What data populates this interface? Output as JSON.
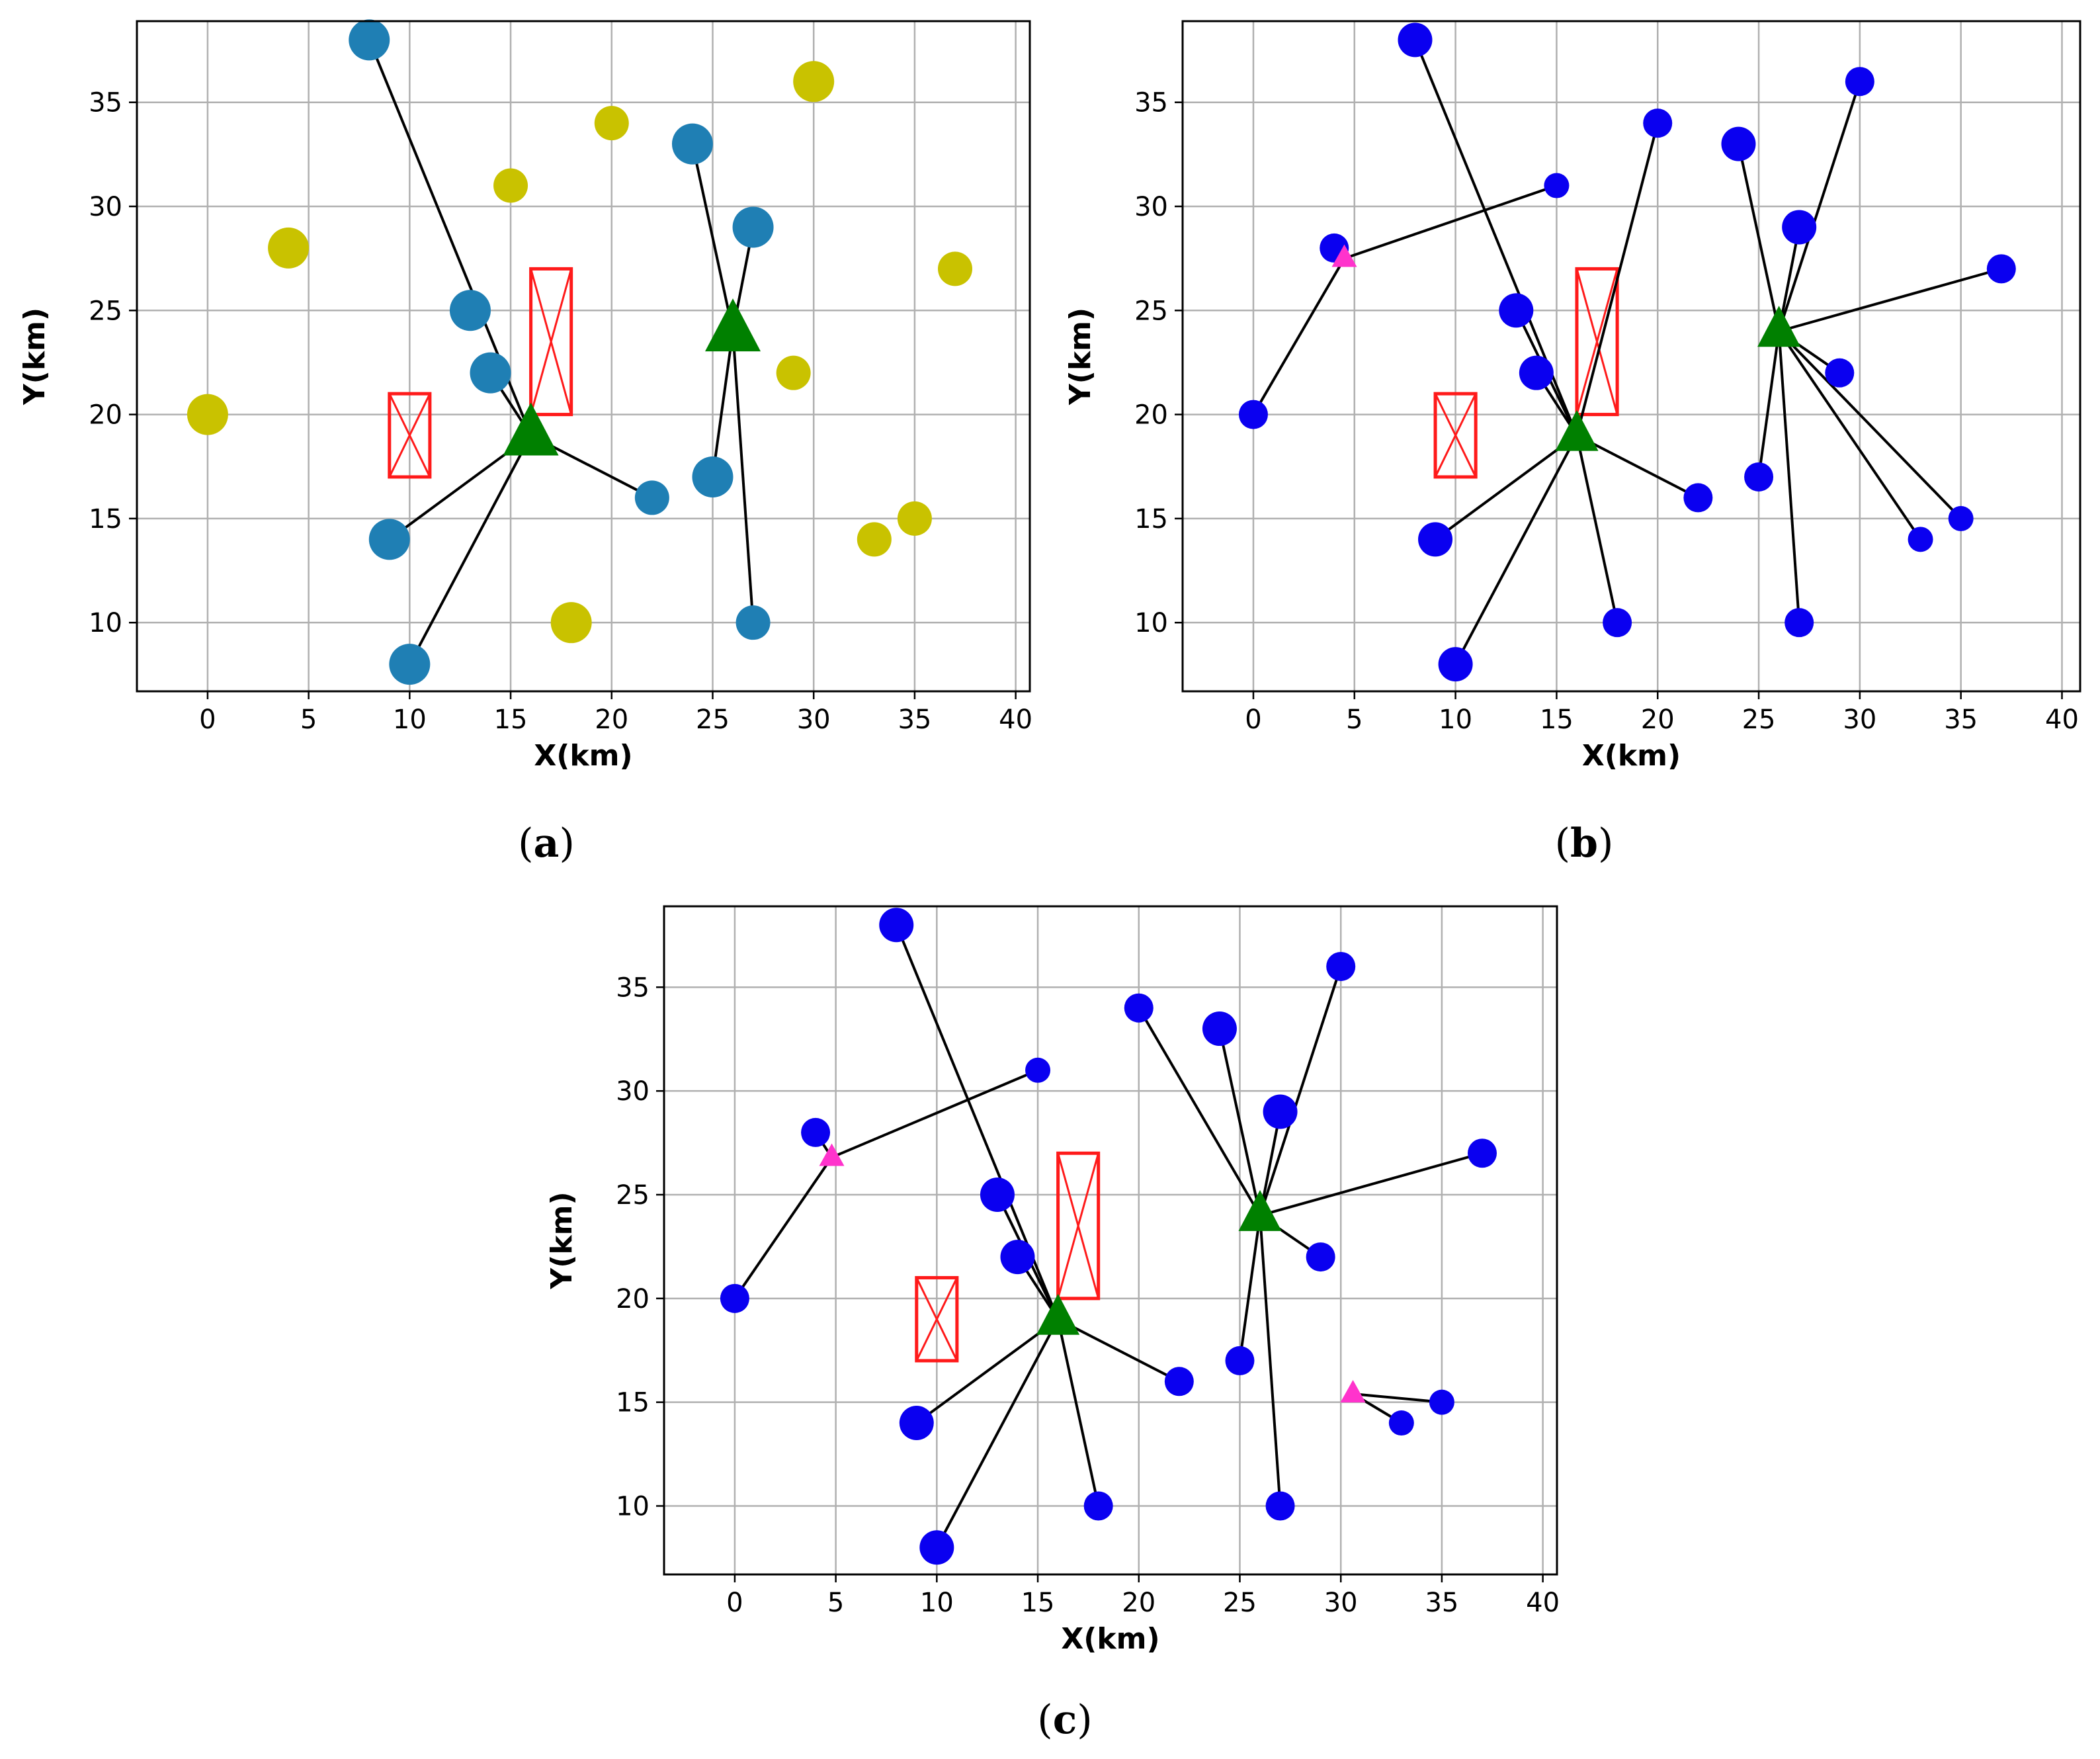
{
  "colors": {
    "cluster_member": "#1f7fb4",
    "unassigned": "#c9c200",
    "user_blue": "#0a00f0",
    "base_station": "#008000",
    "relay": "#ff33cc",
    "obstacle": "#ff1a1a",
    "link": "#000000",
    "grid": "#b0b0b0"
  },
  "chart_data": [
    {
      "type": "scatter",
      "panel": "a",
      "caption_letter": "a",
      "xlabel": "X(km)",
      "ylabel": "Y(km)",
      "xlim": [
        -3.5,
        40.7
      ],
      "ylim": [
        6.7,
        38.9
      ],
      "xticks": [
        0,
        5,
        10,
        15,
        20,
        25,
        30,
        35,
        40
      ],
      "yticks": [
        10,
        15,
        20,
        25,
        30,
        35
      ],
      "grid": true,
      "base_stations": [
        {
          "x": 16,
          "y": 19,
          "size": "large"
        },
        {
          "x": 26,
          "y": 24,
          "size": "large"
        }
      ],
      "relays": [],
      "obstacles": [
        {
          "x0": 9,
          "y0": 17,
          "x1": 11,
          "y1": 21
        },
        {
          "x0": 16,
          "y0": 20,
          "x1": 18,
          "y1": 27
        }
      ],
      "points": [
        {
          "x": 8,
          "y": 38,
          "group": "cluster_member",
          "size": "large",
          "link": [
            16,
            19
          ]
        },
        {
          "x": 13,
          "y": 25,
          "group": "cluster_member",
          "size": "large",
          "link": null
        },
        {
          "x": 14,
          "y": 22,
          "group": "cluster_member",
          "size": "large",
          "link": [
            16,
            19
          ]
        },
        {
          "x": 9,
          "y": 14,
          "group": "cluster_member",
          "size": "large",
          "link": [
            16,
            19
          ]
        },
        {
          "x": 10,
          "y": 8,
          "group": "cluster_member",
          "size": "large",
          "link": [
            16,
            19
          ]
        },
        {
          "x": 22,
          "y": 16,
          "group": "cluster_member",
          "size": "medium",
          "link": [
            16,
            19
          ]
        },
        {
          "x": 24,
          "y": 33,
          "group": "cluster_member",
          "size": "large",
          "link": [
            26,
            24
          ]
        },
        {
          "x": 27,
          "y": 29,
          "group": "cluster_member",
          "size": "large",
          "link": [
            26,
            24
          ]
        },
        {
          "x": 25,
          "y": 17,
          "group": "cluster_member",
          "size": "large",
          "link": [
            26,
            24
          ]
        },
        {
          "x": 27,
          "y": 10,
          "group": "cluster_member",
          "size": "medium",
          "link": [
            26,
            24
          ]
        },
        {
          "x": 0,
          "y": 20,
          "group": "unassigned",
          "size": "large",
          "link": null
        },
        {
          "x": 4,
          "y": 28,
          "group": "unassigned",
          "size": "large",
          "link": null
        },
        {
          "x": 15,
          "y": 31,
          "group": "unassigned",
          "size": "medium",
          "link": null
        },
        {
          "x": 20,
          "y": 34,
          "group": "unassigned",
          "size": "medium",
          "link": null
        },
        {
          "x": 30,
          "y": 36,
          "group": "unassigned",
          "size": "large",
          "link": null
        },
        {
          "x": 37,
          "y": 27,
          "group": "unassigned",
          "size": "medium",
          "link": null
        },
        {
          "x": 29,
          "y": 22,
          "group": "unassigned",
          "size": "medium",
          "link": null
        },
        {
          "x": 18,
          "y": 10,
          "group": "unassigned",
          "size": "large",
          "link": null
        },
        {
          "x": 33,
          "y": 14,
          "group": "unassigned",
          "size": "medium",
          "link": null
        },
        {
          "x": 35,
          "y": 15,
          "group": "unassigned",
          "size": "medium",
          "link": null
        }
      ]
    },
    {
      "type": "scatter",
      "panel": "b",
      "caption_letter": "b",
      "xlabel": "X(km)",
      "ylabel": "Y(km)",
      "xlim": [
        -3.5,
        40.9
      ],
      "ylim": [
        6.7,
        38.9
      ],
      "xticks": [
        0,
        5,
        10,
        15,
        20,
        25,
        30,
        35,
        40
      ],
      "yticks": [
        10,
        15,
        20,
        25,
        30,
        35
      ],
      "grid": true,
      "base_stations": [
        {
          "x": 16,
          "y": 19,
          "size": "medium"
        },
        {
          "x": 26,
          "y": 24,
          "size": "medium"
        }
      ],
      "relays": [
        {
          "x": 4.5,
          "y": 27.5
        }
      ],
      "obstacles": [
        {
          "x0": 9,
          "y0": 17,
          "x1": 11,
          "y1": 21
        },
        {
          "x0": 16,
          "y0": 20,
          "x1": 18,
          "y1": 27
        }
      ],
      "points": [
        {
          "x": 8,
          "y": 38,
          "group": "user_blue",
          "size": "medium",
          "link": [
            16,
            19
          ]
        },
        {
          "x": 13,
          "y": 25,
          "group": "user_blue",
          "size": "medium",
          "link": [
            16,
            19
          ]
        },
        {
          "x": 14,
          "y": 22,
          "group": "user_blue",
          "size": "medium",
          "link": [
            16,
            19
          ]
        },
        {
          "x": 9,
          "y": 14,
          "group": "user_blue",
          "size": "medium",
          "link": [
            16,
            19
          ]
        },
        {
          "x": 10,
          "y": 8,
          "group": "user_blue",
          "size": "medium",
          "link": [
            16,
            19
          ]
        },
        {
          "x": 22,
          "y": 16,
          "group": "user_blue",
          "size": "small",
          "link": [
            16,
            19
          ]
        },
        {
          "x": 18,
          "y": 10,
          "group": "user_blue",
          "size": "small",
          "link": [
            16,
            19
          ]
        },
        {
          "x": 20,
          "y": 34,
          "group": "user_blue",
          "size": "small",
          "link": [
            16,
            19
          ]
        },
        {
          "x": 24,
          "y": 33,
          "group": "user_blue",
          "size": "medium",
          "link": [
            26,
            24
          ]
        },
        {
          "x": 27,
          "y": 29,
          "group": "user_blue",
          "size": "medium",
          "link": [
            26,
            24
          ]
        },
        {
          "x": 30,
          "y": 36,
          "group": "user_blue",
          "size": "small",
          "link": [
            26,
            24
          ]
        },
        {
          "x": 37,
          "y": 27,
          "group": "user_blue",
          "size": "small",
          "link": [
            26,
            24
          ]
        },
        {
          "x": 29,
          "y": 22,
          "group": "user_blue",
          "size": "small",
          "link": [
            26,
            24
          ]
        },
        {
          "x": 25,
          "y": 17,
          "group": "user_blue",
          "size": "small",
          "link": [
            26,
            24
          ]
        },
        {
          "x": 27,
          "y": 10,
          "group": "user_blue",
          "size": "small",
          "link": [
            26,
            24
          ]
        },
        {
          "x": 33,
          "y": 14,
          "group": "user_blue",
          "size": "tiny",
          "link": [
            26,
            24
          ]
        },
        {
          "x": 35,
          "y": 15,
          "group": "user_blue",
          "size": "tiny",
          "link": [
            26,
            24
          ]
        },
        {
          "x": 4,
          "y": 28,
          "group": "user_blue",
          "size": "small",
          "link": [
            4.5,
            27.5
          ]
        },
        {
          "x": 0,
          "y": 20,
          "group": "user_blue",
          "size": "small",
          "link": [
            4.5,
            27.5
          ]
        },
        {
          "x": 15,
          "y": 31,
          "group": "user_blue",
          "size": "tiny",
          "link": [
            4.5,
            27.5
          ]
        }
      ]
    },
    {
      "type": "scatter",
      "panel": "c",
      "caption_letter": "c",
      "xlabel": "X(km)",
      "ylabel": "Y(km)",
      "xlim": [
        -3.5,
        40.7
      ],
      "ylim": [
        6.7,
        38.9
      ],
      "xticks": [
        0,
        5,
        10,
        15,
        20,
        25,
        30,
        35,
        40
      ],
      "yticks": [
        10,
        15,
        20,
        25,
        30,
        35
      ],
      "grid": true,
      "base_stations": [
        {
          "x": 16,
          "y": 19,
          "size": "medium"
        },
        {
          "x": 26,
          "y": 24,
          "size": "medium"
        }
      ],
      "relays": [
        {
          "x": 4.8,
          "y": 26.8
        },
        {
          "x": 30.6,
          "y": 15.4
        }
      ],
      "obstacles": [
        {
          "x0": 9,
          "y0": 17,
          "x1": 11,
          "y1": 21
        },
        {
          "x0": 16,
          "y0": 20,
          "x1": 18,
          "y1": 27
        }
      ],
      "points": [
        {
          "x": 8,
          "y": 38,
          "group": "user_blue",
          "size": "medium",
          "link": [
            16,
            19
          ]
        },
        {
          "x": 13,
          "y": 25,
          "group": "user_blue",
          "size": "medium",
          "link": [
            16,
            19
          ]
        },
        {
          "x": 14,
          "y": 22,
          "group": "user_blue",
          "size": "medium",
          "link": [
            16,
            19
          ]
        },
        {
          "x": 9,
          "y": 14,
          "group": "user_blue",
          "size": "medium",
          "link": [
            16,
            19
          ]
        },
        {
          "x": 10,
          "y": 8,
          "group": "user_blue",
          "size": "medium",
          "link": [
            16,
            19
          ]
        },
        {
          "x": 22,
          "y": 16,
          "group": "user_blue",
          "size": "small",
          "link": [
            16,
            19
          ]
        },
        {
          "x": 18,
          "y": 10,
          "group": "user_blue",
          "size": "small",
          "link": [
            16,
            19
          ]
        },
        {
          "x": 20,
          "y": 34,
          "group": "user_blue",
          "size": "small",
          "link": [
            26,
            24
          ]
        },
        {
          "x": 24,
          "y": 33,
          "group": "user_blue",
          "size": "medium",
          "link": [
            26,
            24
          ]
        },
        {
          "x": 27,
          "y": 29,
          "group": "user_blue",
          "size": "medium",
          "link": [
            26,
            24
          ]
        },
        {
          "x": 30,
          "y": 36,
          "group": "user_blue",
          "size": "small",
          "link": [
            26,
            24
          ]
        },
        {
          "x": 37,
          "y": 27,
          "group": "user_blue",
          "size": "small",
          "link": [
            26,
            24
          ]
        },
        {
          "x": 29,
          "y": 22,
          "group": "user_blue",
          "size": "small",
          "link": [
            26,
            24
          ]
        },
        {
          "x": 25,
          "y": 17,
          "group": "user_blue",
          "size": "small",
          "link": [
            26,
            24
          ]
        },
        {
          "x": 27,
          "y": 10,
          "group": "user_blue",
          "size": "small",
          "link": [
            26,
            24
          ]
        },
        {
          "x": 4,
          "y": 28,
          "group": "user_blue",
          "size": "small",
          "link": [
            4.8,
            26.8
          ]
        },
        {
          "x": 0,
          "y": 20,
          "group": "user_blue",
          "size": "small",
          "link": [
            4.8,
            26.8
          ]
        },
        {
          "x": 15,
          "y": 31,
          "group": "user_blue",
          "size": "tiny",
          "link": [
            4.8,
            26.8
          ]
        },
        {
          "x": 33,
          "y": 14,
          "group": "user_blue",
          "size": "tiny",
          "link": [
            30.6,
            15.4
          ]
        },
        {
          "x": 35,
          "y": 15,
          "group": "user_blue",
          "size": "tiny",
          "link": [
            30.6,
            15.4
          ]
        }
      ]
    }
  ]
}
